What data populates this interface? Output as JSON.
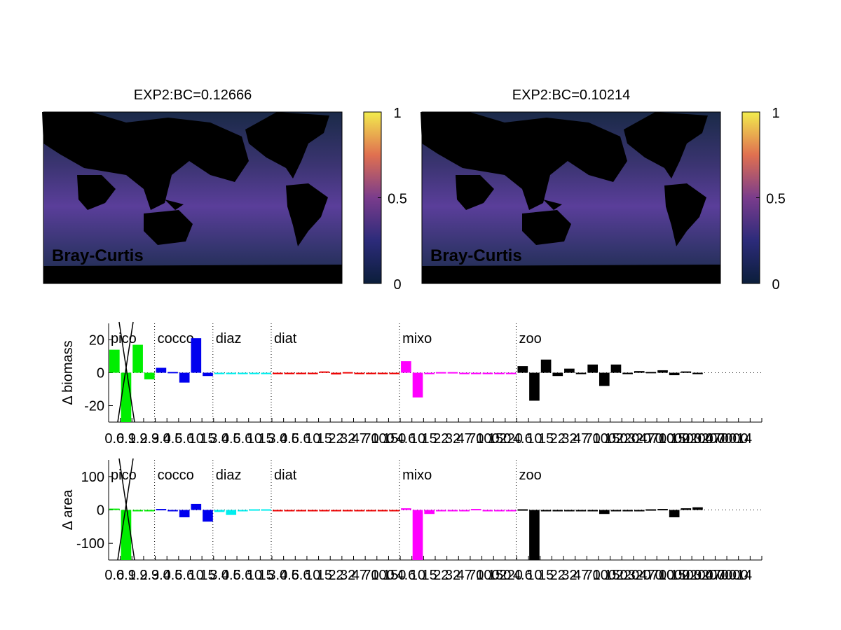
{
  "colors": {
    "pico": "#00ee00",
    "cocco": "#0000ee",
    "diaz": "#00eeee",
    "diat": "#ee0000",
    "mixo": "#ff00ff",
    "zoo": "#000000",
    "ocean": "#3a3470",
    "ocean_warm": "#5a3e9a",
    "ocean_cold": "#1a2a48",
    "land": "#000000"
  },
  "maps": [
    {
      "title": "EXP2:BC=0.12666",
      "label": "Bray-Curtis",
      "colorbar": {
        "ticks": [
          "0",
          "0.5",
          "1"
        ],
        "range": [
          0,
          1
        ]
      }
    },
    {
      "title": "EXP2:BC=0.10214",
      "label": "Bray-Curtis",
      "colorbar": {
        "ticks": [
          "0",
          "0.5",
          "1"
        ],
        "range": [
          0,
          1
        ]
      }
    }
  ],
  "group_labels": [
    "pico",
    "cocco",
    "diaz",
    "diat",
    "mixo",
    "zoo"
  ],
  "xtick_labels": [
    "0.6",
    "0.9",
    "1.9",
    "2.9",
    "3.0",
    "4.6",
    "5.6",
    "10",
    "15",
    "3.0",
    "4.6",
    "5.6",
    "10",
    "15",
    "3.0",
    "4.6",
    "5.6",
    "10",
    "15",
    "22",
    "32",
    "47",
    "70",
    "100",
    "150",
    "4.6",
    "10",
    "15",
    "22",
    "32",
    "47",
    "70",
    "100",
    "150",
    "220",
    "4.6",
    "10",
    "15",
    "22",
    "32",
    "47",
    "70",
    "100",
    "150",
    "220",
    "320",
    "470",
    "700",
    "1000",
    "1500",
    "2200",
    "3200",
    "4700",
    "7000",
    "14"
  ],
  "chart_data": [
    {
      "type": "bar",
      "ylabel": "Δ biomass",
      "ylim": [
        -30,
        30
      ],
      "yticks": [
        -20,
        0,
        20
      ],
      "groups": [
        {
          "name": "pico",
          "values": [
            14,
            -32,
            17,
            -4
          ]
        },
        {
          "name": "cocco",
          "values": [
            3,
            0.5,
            -6,
            21,
            -2
          ]
        },
        {
          "name": "diaz",
          "values": [
            -0.4,
            -0.4,
            0,
            0,
            -0.4
          ]
        },
        {
          "name": "diat",
          "values": [
            -0.5,
            -0.3,
            0,
            -0.8,
            0.8,
            -1,
            0.4,
            0,
            0,
            0,
            0
          ]
        },
        {
          "name": "mixo",
          "values": [
            7,
            -15,
            -0.5,
            0.4,
            0.4,
            0,
            0,
            0,
            0,
            0
          ]
        },
        {
          "name": "zoo",
          "values": [
            4,
            -17,
            8,
            -2,
            2.5,
            -0.5,
            5,
            -8,
            5,
            0,
            1,
            0.5,
            1.5,
            -1.5,
            0.8,
            0
          ]
        }
      ]
    },
    {
      "type": "bar",
      "ylabel": "Δ area",
      "ylim": [
        -150,
        150
      ],
      "yticks": [
        -100,
        0,
        100
      ],
      "groups": [
        {
          "name": "pico",
          "values": [
            4,
            -160,
            0,
            0
          ]
        },
        {
          "name": "cocco",
          "values": [
            3,
            0,
            -22,
            18,
            -35
          ]
        },
        {
          "name": "diaz",
          "values": [
            -6,
            -15,
            0,
            2,
            2
          ]
        },
        {
          "name": "diat",
          "values": [
            -1,
            -1,
            -3,
            -2,
            -1,
            0,
            0,
            0,
            0,
            0,
            0
          ]
        },
        {
          "name": "mixo",
          "values": [
            5,
            -155,
            -12,
            0,
            0,
            0,
            3,
            0,
            0,
            0
          ]
        },
        {
          "name": "zoo",
          "values": [
            2,
            -160,
            0,
            0,
            0,
            0,
            0,
            -12,
            -3,
            -2,
            0,
            2,
            3,
            -22,
            5,
            8
          ]
        }
      ]
    }
  ]
}
